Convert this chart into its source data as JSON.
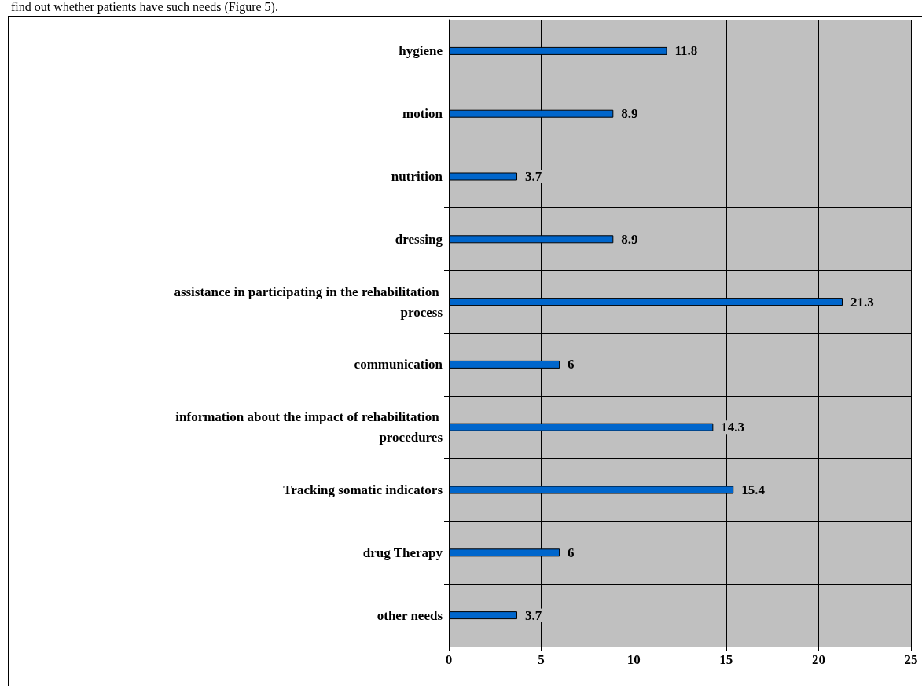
{
  "chart_data": {
    "type": "bar",
    "orientation": "horizontal",
    "annotations": [
      "find out whether patients have such needs (Figure 5)."
    ],
    "categories": [
      "hygiene",
      "motion",
      "nutrition",
      "dressing",
      "assistance in participating in the rehabilitation process",
      "communication",
      "information about the impact of rehabilitation procedures",
      "Tracking somatic indicators",
      "drug Therapy",
      "other needs"
    ],
    "values": [
      11.8,
      8.9,
      3.7,
      8.9,
      21.3,
      6,
      14.3,
      15.4,
      6,
      3.7
    ],
    "color": "#0066cc",
    "xlim": [
      0,
      25
    ],
    "xticks": [
      0,
      5,
      10,
      15,
      20,
      25
    ],
    "grid": true,
    "data_labels": true
  }
}
